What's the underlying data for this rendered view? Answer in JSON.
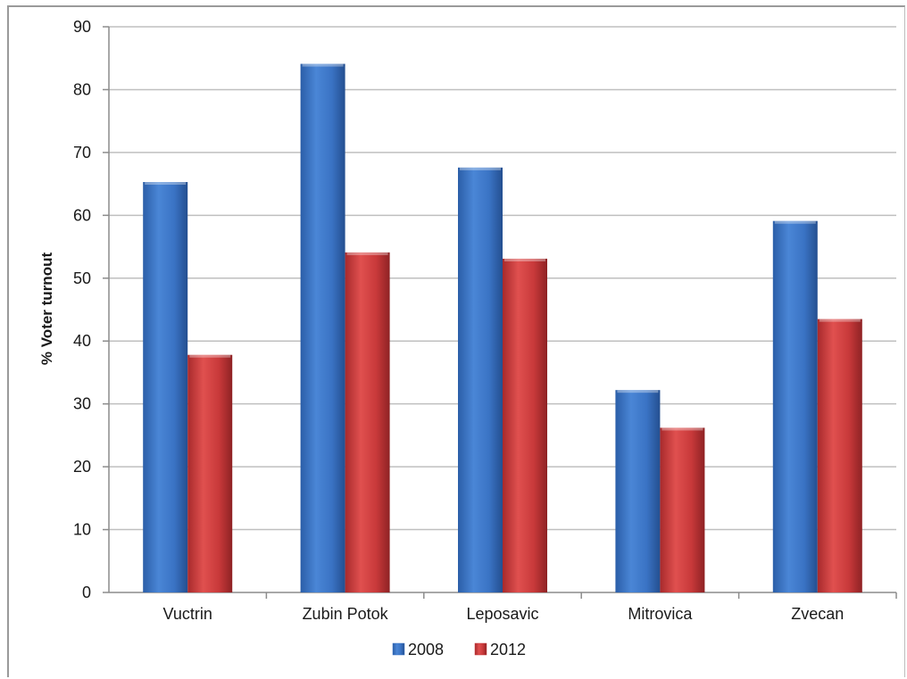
{
  "chart_data": {
    "type": "bar",
    "categories": [
      "Vuctrin",
      "Zubin Potok",
      "Leposavic",
      "Mitrovica",
      "Zvecan"
    ],
    "series": [
      {
        "name": "2008",
        "values": [
          65.3,
          84.1,
          67.6,
          32.2,
          59.1
        ],
        "color": "#3a73c4"
      },
      {
        "name": "2012",
        "values": [
          37.8,
          54.1,
          53.1,
          26.2,
          43.5
        ],
        "color": "#c8393a"
      }
    ],
    "title": "",
    "xlabel": "",
    "ylabel": "% Voter turnout",
    "ylim": [
      0,
      90
    ],
    "yticks": [
      0,
      10,
      20,
      30,
      40,
      50,
      60,
      70,
      80,
      90
    ],
    "grid": true,
    "legend_position": "bottom"
  }
}
